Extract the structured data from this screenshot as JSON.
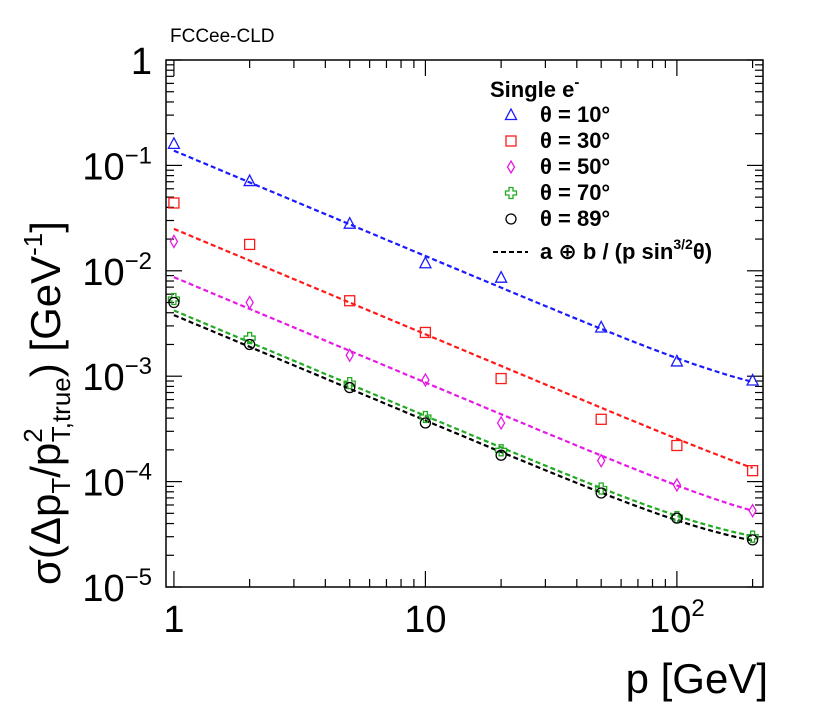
{
  "chart_data": {
    "type": "scatter",
    "corner_label": "FCCee-CLD",
    "xlabel": "p [GeV]",
    "ylabel": "σ(Δp_T/p_T,true^2) [GeV^-1]",
    "xscale": "log",
    "yscale": "log",
    "xlim": [
      0.93,
      220
    ],
    "ylim": [
      1e-05,
      1
    ],
    "x_ticks": [
      {
        "value": 1,
        "base": "1",
        "exp": ""
      },
      {
        "value": 10,
        "base": "10",
        "exp": ""
      },
      {
        "value": 100,
        "base": "10",
        "exp": "2"
      }
    ],
    "y_ticks": [
      {
        "value": 1,
        "base": "1",
        "exp": ""
      },
      {
        "value": 0.1,
        "base": "10",
        "exp": "−1"
      },
      {
        "value": 0.01,
        "base": "10",
        "exp": "−2"
      },
      {
        "value": 0.001,
        "base": "10",
        "exp": "−3"
      },
      {
        "value": 0.0001,
        "base": "10",
        "exp": "−4"
      },
      {
        "value": 1e-05,
        "base": "10",
        "exp": "−5"
      }
    ],
    "legend_title": "Single e",
    "legend_title_sup": "-",
    "legend_position": "top-right",
    "fit_label": "a ⊕ b / (p sin",
    "fit_label_sup": "3/2",
    "fit_label_end": "θ)",
    "series": [
      {
        "name": "θ = 10°",
        "marker": "triangle",
        "color": "#1a1aff",
        "x": [
          1,
          2,
          5,
          10,
          20,
          50,
          100,
          200
        ],
        "y": [
          0.16,
          0.071,
          0.028,
          0.0118,
          0.0086,
          0.0029,
          0.00138,
          0.00091
        ],
        "fit": {
          "a": 0.00055,
          "b": 0.138
        }
      },
      {
        "name": "θ = 30°",
        "marker": "square",
        "color": "#ff1a1a",
        "x": [
          1,
          2,
          5,
          10,
          20,
          50,
          100,
          200
        ],
        "y": [
          0.044,
          0.0178,
          0.0052,
          0.0026,
          0.00095,
          0.00039,
          0.00022,
          0.000127
        ],
        "fit": {
          "a": 5e-05,
          "b": 0.025
        }
      },
      {
        "name": "θ = 50°",
        "marker": "diamond",
        "color": "#e619e6",
        "x": [
          1,
          2,
          5,
          10,
          20,
          50,
          100,
          200
        ],
        "y": [
          0.019,
          0.005,
          0.00158,
          0.00092,
          0.00036,
          0.000158,
          9.3e-05,
          5.3e-05
        ],
        "fit": {
          "a": 3e-05,
          "b": 0.0087
        }
      },
      {
        "name": "θ = 70°",
        "marker": "cross",
        "color": "#22aa22",
        "x": [
          1,
          2,
          5,
          10,
          20,
          50,
          100,
          200
        ],
        "y": [
          0.0054,
          0.0023,
          0.00086,
          0.00041,
          0.000198,
          8.6e-05,
          4.6e-05,
          3e-05
        ],
        "fit": {
          "a": 2.2e-05,
          "b": 0.0042
        }
      },
      {
        "name": "θ = 89°",
        "marker": "circle",
        "color": "#000000",
        "x": [
          1,
          2,
          5,
          10,
          20,
          50,
          100,
          200
        ],
        "y": [
          0.005,
          0.002,
          0.00078,
          0.00036,
          0.000178,
          7.8e-05,
          4.5e-05,
          2.8e-05
        ],
        "fit": {
          "a": 2e-05,
          "b": 0.0038
        }
      }
    ]
  }
}
